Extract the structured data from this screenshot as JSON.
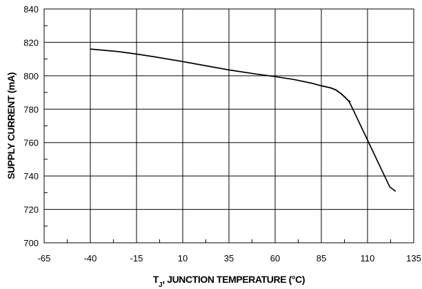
{
  "chart_data": {
    "type": "line",
    "title": "",
    "xlabel": {
      "prefix": "T",
      "subscript": "J",
      "rest": ", JUNCTION TEMPERATURE (°C)"
    },
    "ylabel": "SUPPLY CURRENT (mA)",
    "xlim": [
      -65,
      135
    ],
    "ylim": [
      700,
      840
    ],
    "xticks": [
      -65,
      -40,
      -15,
      10,
      35,
      60,
      85,
      110,
      135
    ],
    "yticks": [
      700,
      720,
      740,
      760,
      780,
      800,
      820,
      840
    ],
    "xticks_minor": [
      -52.5,
      -27.5,
      -2.5,
      22.5,
      47.5,
      72.5,
      97.5,
      122.5
    ],
    "yticks_minor": [
      710,
      730,
      750,
      770,
      790,
      810,
      830
    ],
    "grid": true,
    "series": [
      {
        "x": [
          -40,
          -25,
          -15,
          -5,
          10,
          20,
          35,
          50,
          60,
          70,
          80,
          85,
          90,
          93,
          96,
          98,
          100,
          101.5,
          104,
          107,
          110,
          113,
          116,
          119,
          122,
          125
        ],
        "y": [
          816,
          814.5,
          813,
          811.3,
          808.5,
          806.5,
          803.5,
          801,
          799.5,
          797.8,
          795.5,
          794,
          792.8,
          791.5,
          789,
          787,
          784.6,
          781.3,
          775.5,
          768.5,
          761.5,
          754.5,
          747.5,
          740.5,
          733.5,
          731
        ]
      },
      {
        "x": [
          85,
          88,
          90.5,
          93,
          95.5,
          97.5,
          99.5,
          100.5
        ],
        "y": [
          794,
          793.3,
          792.6,
          791.4,
          789.4,
          787.4,
          785.3,
          784.6
        ]
      }
    ],
    "colors": {
      "line": "#000000",
      "grid": "#000000",
      "background": "#ffffff"
    }
  }
}
